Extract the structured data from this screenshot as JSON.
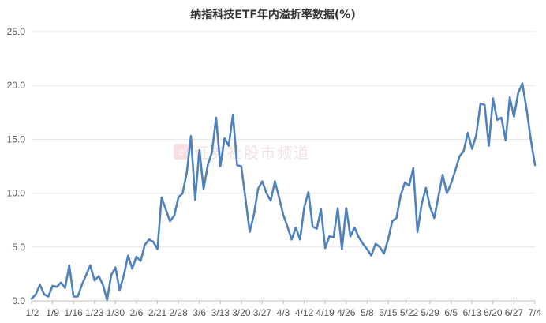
{
  "chart_data": {
    "type": "line",
    "title": "纳指科技ETF年内溢折率数据(%)",
    "xlabel": "",
    "ylabel": "",
    "ylim": [
      0,
      25
    ],
    "yticks": [
      "0.0",
      "5.0",
      "10.0",
      "15.0",
      "20.0",
      "25.0"
    ],
    "xticks": [
      "1/2",
      "1/9",
      "1/16",
      "1/23",
      "1/30",
      "2/6",
      "2/21",
      "2/28",
      "3/6",
      "3/13",
      "3/20",
      "3/27",
      "4/3",
      "4/12",
      "4/19",
      "4/26",
      "5/8",
      "5/15",
      "5/22",
      "5/29",
      "6/5",
      "6/13",
      "6/20",
      "6/27",
      "7/4"
    ],
    "grid": true,
    "legend": "none",
    "line_color": "#4f81bd",
    "series": [
      {
        "values": [
          0.2,
          0.6,
          1.5,
          0.6,
          0.4,
          1.4,
          1.3,
          1.7,
          1.2,
          3.3,
          0.4,
          0.4,
          1.5,
          2.4,
          3.3,
          1.9,
          2.3,
          1.5,
          0.1,
          2.4,
          3.1,
          1.0,
          2.4,
          4.2,
          3.0,
          4.1,
          3.7,
          5.2,
          5.7,
          5.5,
          4.8,
          9.6,
          8.5,
          7.4,
          7.9,
          9.6,
          10.0,
          11.9,
          15.3,
          9.4,
          14.0,
          10.4,
          12.6,
          13.8,
          17.0,
          12.5,
          15.1,
          14.4,
          17.3,
          12.6,
          12.5,
          9.5,
          6.4,
          8.0,
          10.4,
          11.1,
          10.0,
          9.3,
          11.1,
          9.6,
          8.0,
          6.9,
          5.7,
          6.8,
          5.7,
          8.7,
          10.1,
          6.9,
          6.7,
          8.5,
          4.9,
          6.0,
          5.9,
          8.6,
          4.8,
          8.6,
          6.0,
          6.8,
          5.9,
          5.3,
          4.8,
          4.2,
          5.3,
          5.0,
          4.4,
          5.7,
          7.4,
          7.7,
          9.8,
          11.0,
          10.7,
          12.3,
          6.4,
          9.0,
          10.5,
          8.7,
          7.7,
          9.7,
          11.7,
          10.0,
          10.9,
          12.1,
          13.4,
          13.9,
          15.6,
          14.1,
          15.4,
          18.3,
          18.2,
          14.4,
          18.8,
          16.8,
          17.0,
          14.9,
          18.9,
          17.1,
          19.3,
          20.2,
          17.8,
          15.0,
          12.6
        ]
      }
    ]
  },
  "watermark": {
    "logo": "e",
    "text": "证券社股市频道"
  }
}
